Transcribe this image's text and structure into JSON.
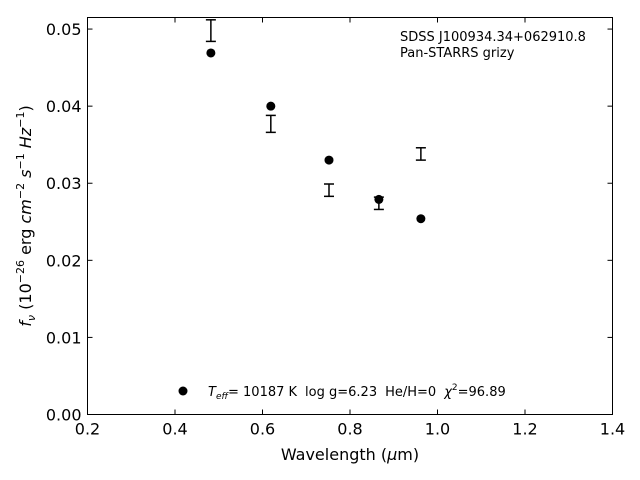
{
  "chart_data": {
    "type": "scatter",
    "annotation": {
      "line1": "SDSS J100934.34+062910.8",
      "line2": "Pan-STARRS grizy"
    },
    "xlabel": {
      "main": "Wavelength (",
      "mu": "μ",
      "unit": "m)"
    },
    "ylabel": {
      "f": "f",
      "nu": "ν",
      "open": " (10",
      "exp1": "−26",
      "erg": " erg ",
      "cm": "cm",
      "exp2": "−2",
      "s": " s",
      "exp3": "−1",
      "hz": " Hz",
      "exp4": "−1",
      "close": ")"
    },
    "legend_text": {
      "T": "T",
      "eff": "eff",
      "teff": "= 10187 K",
      "logg": "log g=6.23",
      "heh": "He/H=0",
      "chi": "χ",
      "chi_exp": "2",
      "chi_val": "=96.89"
    },
    "xlim": [
      0.2,
      1.4
    ],
    "ylim": [
      0.0,
      0.0515
    ],
    "xticks": [
      0.2,
      0.4,
      0.6,
      0.8,
      1.0,
      1.2,
      1.4
    ],
    "xtick_labels": [
      "0.2",
      "0.4",
      "0.6",
      "0.8",
      "1.0",
      "1.2",
      "1.4"
    ],
    "yticks": [
      0.0,
      0.01,
      0.02,
      0.03,
      0.04,
      0.05
    ],
    "ytick_labels": [
      "0.00",
      "0.01",
      "0.02",
      "0.03",
      "0.04",
      "0.05"
    ],
    "model_points": [
      {
        "x": 0.482,
        "y": 0.0469
      },
      {
        "x": 0.619,
        "y": 0.04
      },
      {
        "x": 0.752,
        "y": 0.033
      },
      {
        "x": 0.866,
        "y": 0.0279
      },
      {
        "x": 0.962,
        "y": 0.0254
      }
    ],
    "observed": [
      {
        "x": 0.482,
        "y": 0.0498,
        "lo": 0.0484,
        "hi": 0.0512
      },
      {
        "x": 0.619,
        "y": 0.0377,
        "lo": 0.0366,
        "hi": 0.0388
      },
      {
        "x": 0.752,
        "y": 0.0291,
        "lo": 0.0283,
        "hi": 0.0299
      },
      {
        "x": 0.866,
        "y": 0.0274,
        "lo": 0.0266,
        "hi": 0.0282
      },
      {
        "x": 0.962,
        "y": 0.0338,
        "lo": 0.033,
        "hi": 0.0346
      }
    ],
    "grid": false,
    "legend_placement": "bottom-center",
    "colors": {
      "markers": "#000000",
      "errorbars": "#000000",
      "axes": "#000000"
    }
  }
}
